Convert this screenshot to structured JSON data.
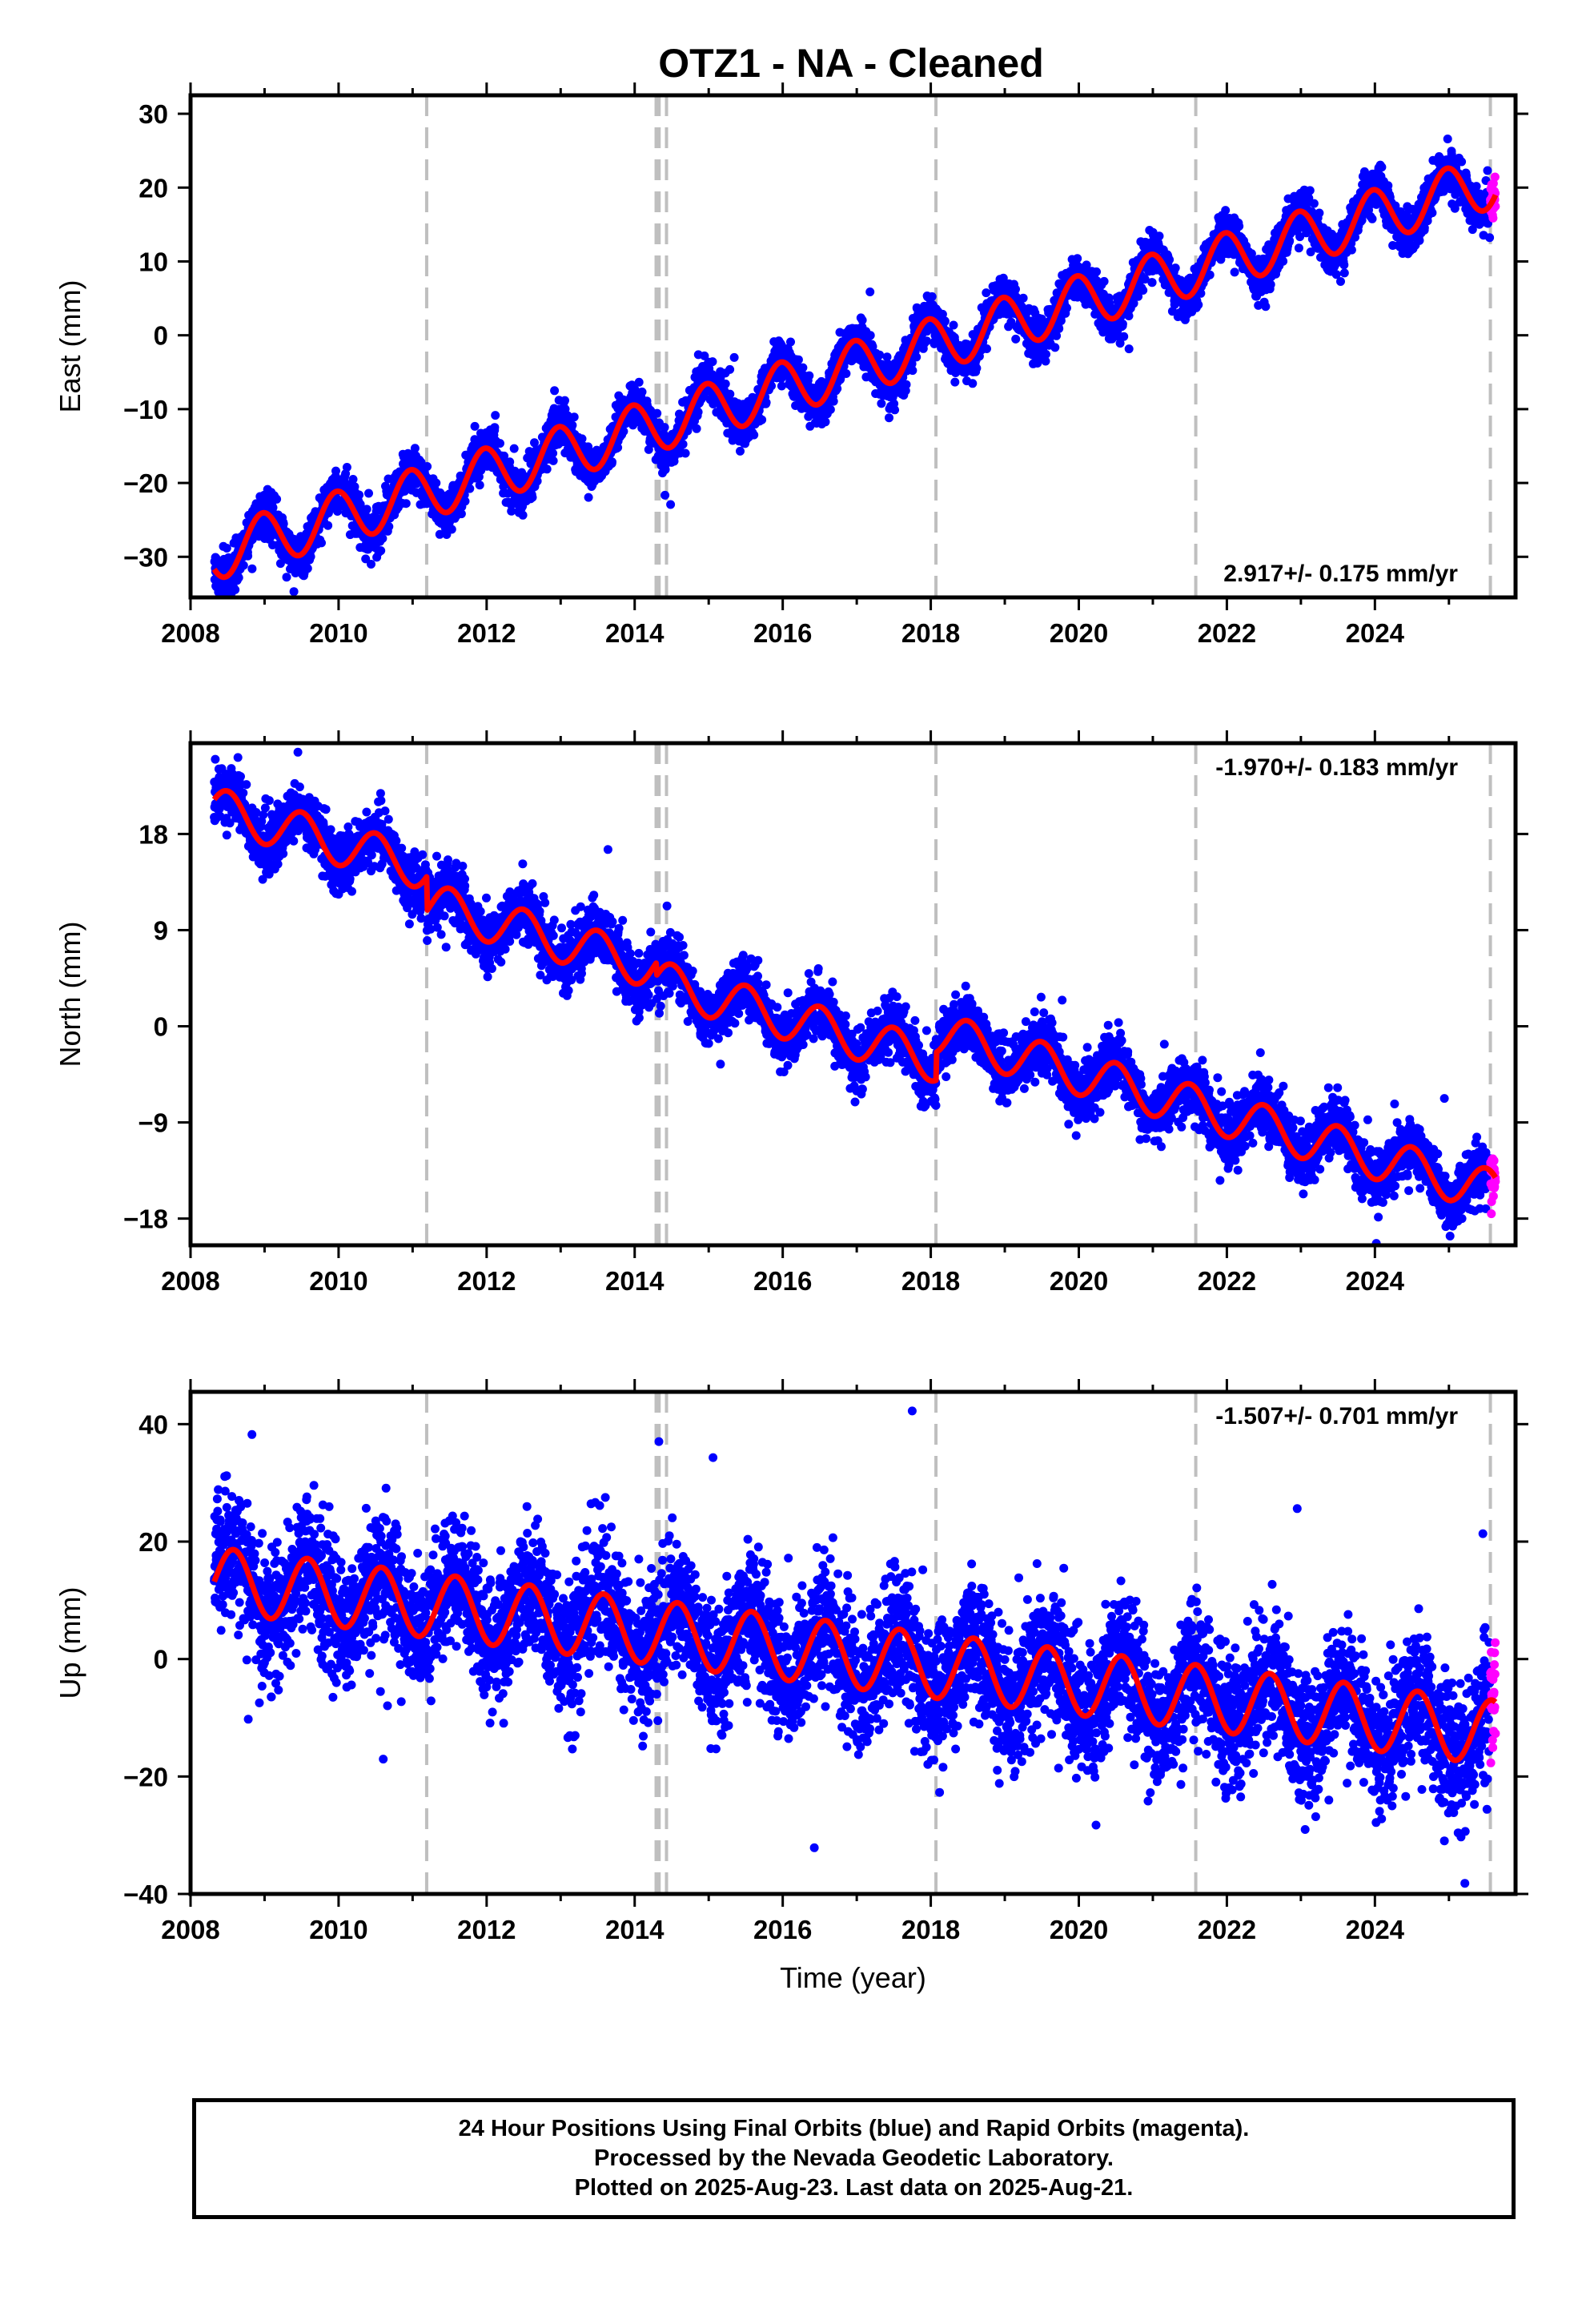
{
  "title": "OTZ1  - NA - Cleaned",
  "caption": [
    "24 Hour Positions Using Final Orbits (blue) and Rapid Orbits (magenta).",
    "Processed by the Nevada Geodetic Laboratory.",
    "Plotted on 2025-Aug-23. Last data on 2025-Aug-21."
  ],
  "colors": {
    "final_orbits": "#0000ff",
    "rapid_orbits": "#ff00ff",
    "model_fit": "#ff0000",
    "event_lines": "#bfbfbf",
    "frame": "#000000"
  },
  "chart_data": [
    {
      "type": "scatter",
      "panel": "east",
      "ylabel": "East (mm)",
      "xlabel": "",
      "xlim": [
        2008.0,
        2025.9
      ],
      "ylim": [
        -35.5,
        32.5
      ],
      "xticks": [
        2008,
        2010,
        2012,
        2014,
        2016,
        2018,
        2020,
        2022,
        2024
      ],
      "yticks": [
        -30,
        -20,
        -10,
        0,
        10,
        20,
        30
      ],
      "ytick_labels": [
        "−30",
        "−20",
        "−10",
        "0",
        "10",
        "20",
        "30"
      ],
      "rate_label": "2.917+/- 0.175 mm/yr",
      "rate_label_position": "bottom-right",
      "grid": false,
      "data_start": 2008.32,
      "data_end": 2025.63,
      "rapid_start": 2025.56,
      "event_lines": [
        2011.19,
        2014.29,
        2014.33,
        2014.43,
        2018.07,
        2021.58,
        2025.56
      ],
      "trend": {
        "intercept_at_2008": -30.5,
        "rate_mm_per_yr": 2.917
      },
      "seasonal": {
        "amplitude": 3.6,
        "peak": 0.97
      },
      "scatter_sd": 1.4,
      "offsets": [],
      "series": [
        {
          "name": "Final Orbits",
          "color": "#0000ff",
          "x_range": [
            2008.32,
            2025.56
          ]
        },
        {
          "name": "Rapid Orbits",
          "color": "#ff00ff",
          "x_range": [
            2025.56,
            2025.63
          ]
        },
        {
          "name": "Model",
          "color": "#ff0000",
          "x_range": [
            2008.32,
            2025.63
          ]
        }
      ]
    },
    {
      "type": "scatter",
      "panel": "north",
      "ylabel": "North (mm)",
      "xlabel": "",
      "xlim": [
        2008.0,
        2025.9
      ],
      "ylim": [
        -20.5,
        26.5
      ],
      "xticks": [
        2008,
        2010,
        2012,
        2014,
        2016,
        2018,
        2020,
        2022,
        2024
      ],
      "yticks": [
        -18,
        -9,
        0,
        9,
        18
      ],
      "ytick_labels": [
        "−18",
        "−9",
        "0",
        "9",
        "18"
      ],
      "rate_label": "-1.970+/- 0.183 mm/yr",
      "rate_label_position": "top-right",
      "grid": false,
      "data_start": 2008.32,
      "data_end": 2025.63,
      "rapid_start": 2025.56,
      "event_lines": [
        2011.19,
        2014.29,
        2014.33,
        2014.43,
        2018.07,
        2021.58,
        2025.56
      ],
      "trend": {
        "intercept_at_2008": 21.0,
        "rate_mm_per_yr": -1.97
      },
      "seasonal": {
        "amplitude": 2.0,
        "peak": 0.5
      },
      "scatter_sd": 1.3,
      "offsets": [
        {
          "x": 2011.19,
          "dy": -3.2
        },
        {
          "x": 2014.29,
          "dy": -1.2
        },
        {
          "x": 2018.07,
          "dy": 2.6
        }
      ],
      "series": [
        {
          "name": "Final Orbits",
          "color": "#0000ff",
          "x_range": [
            2008.32,
            2025.56
          ]
        },
        {
          "name": "Rapid Orbits",
          "color": "#ff00ff",
          "x_range": [
            2025.56,
            2025.63
          ]
        },
        {
          "name": "Model",
          "color": "#ff0000",
          "x_range": [
            2008.32,
            2025.63
          ]
        }
      ]
    },
    {
      "type": "scatter",
      "panel": "up",
      "ylabel": "Up (mm)",
      "xlabel": "Time (year)",
      "xlim": [
        2008.0,
        2025.9
      ],
      "ylim": [
        -40.0,
        45.5
      ],
      "xticks": [
        2008,
        2010,
        2012,
        2014,
        2016,
        2018,
        2020,
        2022,
        2024
      ],
      "yticks": [
        -40,
        -20,
        0,
        20,
        40
      ],
      "ytick_labels": [
        "−40",
        "−20",
        "0",
        "20",
        "40"
      ],
      "rate_label": "-1.507+/- 0.701 mm/yr",
      "rate_label_position": "top-right",
      "grid": false,
      "data_start": 2008.32,
      "data_end": 2025.63,
      "rapid_start": 2025.56,
      "event_lines": [
        2011.19,
        2014.29,
        2014.33,
        2014.43,
        2018.07,
        2021.58,
        2025.56
      ],
      "trend": {
        "intercept_at_2008": 14.0,
        "rate_mm_per_yr": -1.507
      },
      "seasonal": {
        "amplitude": 5.5,
        "peak": 0.58
      },
      "scatter_sd": 5.5,
      "offsets": [],
      "series": [
        {
          "name": "Final Orbits",
          "color": "#0000ff",
          "x_range": [
            2008.32,
            2025.56
          ]
        },
        {
          "name": "Rapid Orbits",
          "color": "#ff00ff",
          "x_range": [
            2025.56,
            2025.63
          ]
        },
        {
          "name": "Model",
          "color": "#ff0000",
          "x_range": [
            2008.32,
            2025.63
          ]
        }
      ]
    }
  ]
}
